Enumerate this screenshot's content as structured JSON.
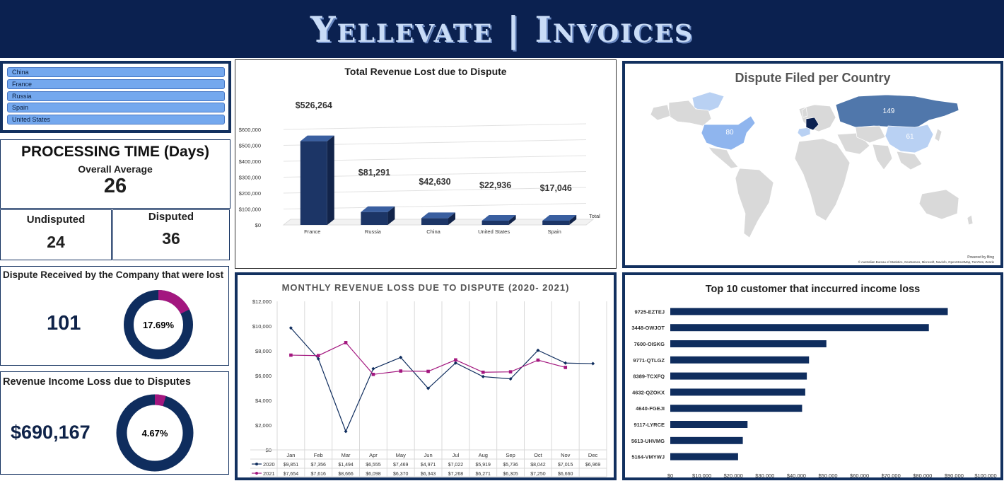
{
  "header": {
    "title": "Yellevate | Invoices"
  },
  "slicer": {
    "items": [
      "China",
      "France",
      "Russia",
      "Spain",
      "United States"
    ]
  },
  "processing": {
    "title": "PROCESSING TIME (Days)",
    "overall_label": "Overall Average",
    "overall_value": "26",
    "undisputed_label": "Undisputed",
    "undisputed_value": "24",
    "disputed_label": "Disputed",
    "disputed_value": "36"
  },
  "disputes_lost": {
    "title": "Dispute Received by the Company that were lost",
    "value": "101",
    "percent": "17.69%",
    "fraction": 0.1769
  },
  "revenue_loss": {
    "title": "Revenue Income Loss due to Disputes",
    "value": "$690,167",
    "percent": "4.67%",
    "fraction": 0.0467
  },
  "colors": {
    "navy": "#0f2d5e",
    "magenta": "#a3177f",
    "header": "#0b2150",
    "bar": "#1c3566"
  },
  "revenue_chart": {
    "chart_data": {
      "type": "bar",
      "title": "Total Revenue Lost due to Dispute",
      "categories": [
        "France",
        "Russia",
        "China",
        "United States",
        "Spain"
      ],
      "values": [
        526264,
        81291,
        42630,
        22936,
        17046
      ],
      "value_labels": [
        "$526,264",
        "$81,291",
        "$42,630",
        "$22,936",
        "$17,046"
      ],
      "yticks": [
        "$600,000",
        "$500,000",
        "$400,000",
        "$300,000",
        "$200,000",
        "$100,000",
        "$0"
      ],
      "ylim": [
        0,
        600000
      ],
      "series_label": "Total"
    }
  },
  "map": {
    "title": "Dispute Filed per Country",
    "labels": {
      "russia": "149",
      "usa": "80",
      "china": "61"
    },
    "credit_top": "Powered by Bing",
    "credit_bottom": "© Australian Bureau of Statistics, GeoNames, Microsoft, Navinfo, OpenStreetMap, TomTom, Zenrin"
  },
  "monthly_chart": {
    "chart_data": {
      "type": "line",
      "title": "MONTHLY REVENUE LOSS DUE TO DISPUTE (2020- 2021)",
      "categories": [
        "Jan",
        "Feb",
        "Mar",
        "Apr",
        "May",
        "Jun",
        "Jul",
        "Aug",
        "Sep",
        "Oct",
        "Nov",
        "Dec"
      ],
      "ylim": [
        0,
        12000
      ],
      "yticks": [
        "$12,000",
        "$10,000",
        "$8,000",
        "$6,000",
        "$4,000",
        "$2,000",
        "$0"
      ],
      "series": [
        {
          "name": "2020",
          "values": [
            9851,
            7356,
            1494,
            6555,
            7469,
            4971,
            7022,
            5919,
            5736,
            8042,
            7015,
            6969
          ],
          "labels": [
            "$9,851",
            "$7,356",
            "$1,494",
            "$6,555",
            "$7,469",
            "$4,971",
            "$7,022",
            "$5,919",
            "$5,736",
            "$8,042",
            "$7,015",
            "$6,969"
          ]
        },
        {
          "name": "2021",
          "values": [
            7654,
            7616,
            8666,
            6098,
            6370,
            6343,
            7268,
            6271,
            6305,
            7250,
            6660,
            null
          ],
          "labels": [
            "$7,654",
            "$7,616",
            "$8,666",
            "$6,098",
            "$6,370",
            "$6,343",
            "$7,268",
            "$6,271",
            "$6,305",
            "$7,250",
            "$6,660",
            ""
          ]
        }
      ]
    }
  },
  "customers_chart": {
    "chart_data": {
      "type": "bar",
      "title": "Top 10 customer that inccurred income loss",
      "categories": [
        "9725-EZTEJ",
        "3448-OWJOT",
        "7600-OISKG",
        "9771-QTLGZ",
        "8389-TCXFQ",
        "4632-QZOKX",
        "4640-FGEJI",
        "9117-LYRCE",
        "5613-UHVMG",
        "5164-VMYWJ"
      ],
      "values": [
        88000,
        82000,
        49500,
        44000,
        43300,
        42800,
        41800,
        24500,
        23000,
        21500
      ],
      "xlim": [
        0,
        100000
      ],
      "xticks": [
        "$0",
        "$10,000",
        "$20,000",
        "$30,000",
        "$40,000",
        "$50,000",
        "$60,000",
        "$70,000",
        "$80,000",
        "$90,000",
        "$100,000"
      ]
    }
  }
}
